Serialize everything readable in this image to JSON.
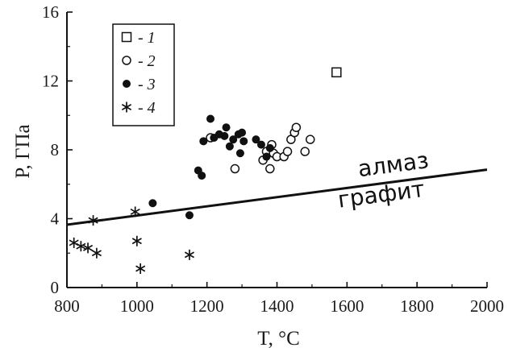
{
  "chart_data": {
    "type": "scatter",
    "title": "",
    "xlabel": "T, °C",
    "ylabel": "P, ГПа",
    "xlim": [
      800,
      2000
    ],
    "ylim": [
      0,
      16
    ],
    "xticks": [
      800,
      1000,
      1200,
      1400,
      1600,
      1800,
      2000
    ],
    "yticks": [
      0,
      4,
      8,
      12,
      16
    ],
    "grid": false,
    "legend_position": "top-left",
    "series": [
      {
        "name": "- 1",
        "marker": "open-square",
        "points": [
          [
            1570,
            12.5
          ]
        ]
      },
      {
        "name": "- 2",
        "marker": "open-circle",
        "points": [
          [
            1210,
            8.7
          ],
          [
            1280,
            6.9
          ],
          [
            1360,
            7.4
          ],
          [
            1370,
            7.9
          ],
          [
            1380,
            6.9
          ],
          [
            1385,
            8.3
          ],
          [
            1390,
            7.8
          ],
          [
            1400,
            7.6
          ],
          [
            1420,
            7.6
          ],
          [
            1430,
            7.9
          ],
          [
            1440,
            8.6
          ],
          [
            1450,
            9.0
          ],
          [
            1455,
            9.3
          ],
          [
            1480,
            7.9
          ],
          [
            1495,
            8.6
          ]
        ]
      },
      {
        "name": "- 3",
        "marker": "filled-circle",
        "points": [
          [
            1045,
            4.9
          ],
          [
            1150,
            4.2
          ],
          [
            1175,
            6.8
          ],
          [
            1185,
            6.5
          ],
          [
            1190,
            8.5
          ],
          [
            1210,
            9.8
          ],
          [
            1220,
            8.7
          ],
          [
            1235,
            8.9
          ],
          [
            1250,
            8.8
          ],
          [
            1255,
            9.3
          ],
          [
            1265,
            8.2
          ],
          [
            1275,
            8.6
          ],
          [
            1290,
            8.9
          ],
          [
            1295,
            7.8
          ],
          [
            1300,
            9.0
          ],
          [
            1305,
            8.5
          ],
          [
            1340,
            8.6
          ],
          [
            1355,
            8.3
          ],
          [
            1370,
            7.6
          ],
          [
            1380,
            8.1
          ]
        ]
      },
      {
        "name": "- 4",
        "marker": "asterisk",
        "points": [
          [
            820,
            2.6
          ],
          [
            840,
            2.4
          ],
          [
            860,
            2.3
          ],
          [
            875,
            3.9
          ],
          [
            885,
            2.0
          ],
          [
            995,
            4.4
          ],
          [
            1000,
            2.7
          ],
          [
            1010,
            1.1
          ],
          [
            1150,
            1.9
          ]
        ]
      }
    ],
    "boundary_line": {
      "points": [
        [
          800,
          3.65
        ],
        [
          2000,
          6.85
        ]
      ],
      "label_above": "алмаз",
      "label_below": "графит"
    }
  }
}
